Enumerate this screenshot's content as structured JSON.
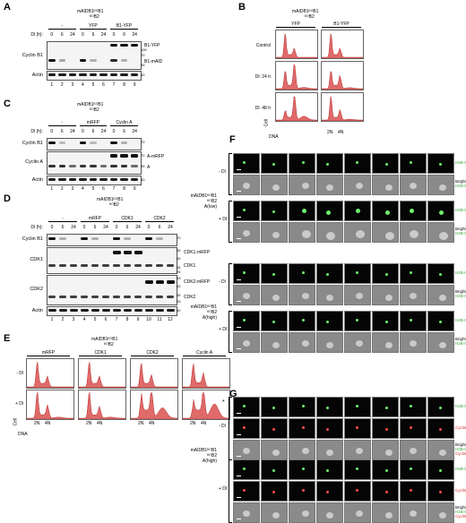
{
  "panels": {
    "A": {
      "letter": "A",
      "genotype_top": "mAID/mAIDB1/mAIDB1",
      "genotype_line1": "mAIDB1ᴷᴼB1",
      "genotype_line2": "ᴷᴼB2",
      "dl_label": "Dl (h):",
      "group_labels": [
        "-",
        "YFP",
        "B1-YFP"
      ],
      "timepoints": [
        "0",
        "6",
        "24",
        "0",
        "6",
        "24",
        "0",
        "6",
        "24"
      ],
      "rows": [
        "Cyclin B1",
        "Actin"
      ],
      "annotations": [
        "B1-YFP",
        "B1-mAID"
      ],
      "mw": [
        "100",
        "70",
        "55",
        "40"
      ],
      "lanes": [
        "1",
        "2",
        "3",
        "4",
        "5",
        "6",
        "7",
        "8",
        "9"
      ]
    },
    "B": {
      "letter": "B",
      "genotype_line1": "mAIDB1ᴷᴼB1",
      "genotype_line2": "ᴷᴼB2",
      "columns": [
        "YFP",
        "B1-YFP"
      ],
      "rows": [
        "Control",
        "Dl: 24 h",
        "Dl: 48 h"
      ],
      "y_label": "Cell",
      "x_label": "DNA",
      "x_ticks": [
        "2N",
        "4N"
      ]
    },
    "C": {
      "letter": "C",
      "genotype_line1": "mAIDB1ᴷᴼB1",
      "genotype_line2": "ᴷᴼB2",
      "dl_label": "Dl (h):",
      "group_labels": [
        "-",
        "mRFP",
        "Cyclin A"
      ],
      "timepoints": [
        "0",
        "6",
        "24",
        "0",
        "6",
        "24",
        "0",
        "6",
        "24"
      ],
      "rows": [
        "Cyclin B1",
        "Cyclin A",
        "Actin"
      ],
      "annotations": [
        "A-mRFP",
        "A"
      ],
      "mw": [
        "70",
        "70",
        "55",
        "40"
      ],
      "lanes": [
        "1",
        "2",
        "3",
        "4",
        "5",
        "6",
        "7",
        "8",
        "9"
      ]
    },
    "D": {
      "letter": "D",
      "genotype_line1": "mAIDB1ᴷᴼB1",
      "genotype_line2": "ᴷᴼB2",
      "dl_label": "Dl (h):",
      "group_labels": [
        "-",
        "mRFP",
        "CDK1",
        "CDK2"
      ],
      "timepoints": [
        "0",
        "6",
        "24",
        "0",
        "6",
        "24",
        "0",
        "6",
        "24",
        "0",
        "6",
        "24"
      ],
      "rows": [
        "Cyclin B1",
        "CDK1",
        "CDK2",
        "Actin"
      ],
      "annotations": [
        "CDK1-mRFP",
        "CDK1",
        "CDK2-mRFP",
        "CDK2"
      ],
      "mw": [
        "70",
        "55",
        "40",
        "35",
        "25",
        "55",
        "40",
        "35",
        "25",
        "40"
      ],
      "lanes": [
        "1",
        "2",
        "3",
        "4",
        "5",
        "6",
        "7",
        "8",
        "9",
        "10",
        "11",
        "12"
      ]
    },
    "E": {
      "letter": "E",
      "genotype_line1": "mAIDB1ᴷᴼB1",
      "genotype_line2": "ᴷᴼB2",
      "columns": [
        "mRFP",
        "CDK1",
        "CDK2",
        "Cyclin A"
      ],
      "rows": [
        "- Dl",
        "+ Dl"
      ],
      "y_label": "Cell",
      "x_label": "DNA",
      "x_ticks": [
        "2N",
        "4N"
      ],
      "marker": "*"
    },
    "F": {
      "letter": "F",
      "group1_label_line1": "mAIDB1ᴷᴼB1",
      "group1_label_line2": "ᴷᴼB2",
      "group1_label_line3": "A(low)",
      "group2_label_line1": "mAIDB1ᴷᴼB1",
      "group2_label_line2": "ᴷᴼB2",
      "group2_label_line3": "A(high)",
      "conditions": [
        "- Dl",
        "+ Dl",
        "- Dl",
        "+ Dl"
      ],
      "channel_h2b": "H2B-GFP",
      "channel_bf": "Brightfield",
      "channel_bf2": "H2B-GFP"
    },
    "G": {
      "letter": "G",
      "label_line1": "mAIDB1ᴷᴼB1",
      "label_line2": "ᴷᴼB2",
      "label_line3": "A(high)",
      "conditions": [
        "- Dl",
        "+ Dl"
      ],
      "channel_h2b": "H2B-GFP",
      "channel_cyca": "Cyclin A-mRFP",
      "channel_bf": "Brightfield",
      "channel_bf2": "H2B-GFP",
      "channel_bf3": "Cyclin A-mRFP"
    }
  },
  "colors": {
    "histogram_fill": "#e06a6a",
    "histogram_stroke": "#b83030",
    "gfp_text": "#2fa12f",
    "rfp_text": "#d62a2a",
    "gfp_signal": "#6ef06e",
    "rfp_signal": "#ff4a4a"
  }
}
